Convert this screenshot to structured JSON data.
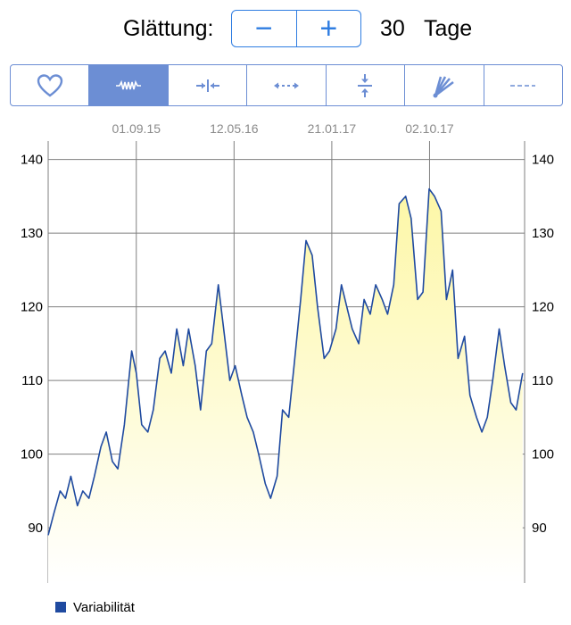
{
  "smoothing": {
    "label": "Glättung:",
    "minus": "−",
    "plus": "+",
    "value": "30",
    "unit": "Tage"
  },
  "toolbar": {
    "tabs": [
      {
        "icon": "heart-icon",
        "active": false
      },
      {
        "icon": "waveform-icon",
        "active": true
      },
      {
        "icon": "compress-horizontal-icon",
        "active": false
      },
      {
        "icon": "expand-horizontal-icon",
        "active": false
      },
      {
        "icon": "compress-vertical-icon",
        "active": false
      },
      {
        "icon": "fan-icon",
        "active": false
      },
      {
        "icon": "dashed-line-icon",
        "active": false
      }
    ]
  },
  "colors": {
    "accent": "#2f7de1",
    "segment": "#6c8ed4",
    "line": "#1f4aa0",
    "fill_top": "#fdf7a6",
    "fill_bottom": "#ffffff",
    "grid": "#7f7f7f",
    "legend": "#1f4aa0"
  },
  "chart_data": {
    "type": "area",
    "title": "",
    "xlabel": "",
    "ylabel": "",
    "x_tick_labels": [
      "01.09.15",
      "12.05.16",
      "21.01.17",
      "02.10.17"
    ],
    "x_range": [
      "2015-01-15",
      "2018-06-06"
    ],
    "y_ticks": [
      90,
      100,
      110,
      120,
      130,
      140
    ],
    "ylim": [
      82.5,
      142.5
    ],
    "grid": true,
    "legend_position": "bottom-left",
    "series": [
      {
        "name": "Variabilität",
        "x": [
          "2015-01-15",
          "2015-01-30",
          "2015-02-15",
          "2015-03-01",
          "2015-03-15",
          "2015-04-01",
          "2015-04-15",
          "2015-05-01",
          "2015-05-15",
          "2015-06-01",
          "2015-06-15",
          "2015-07-01",
          "2015-07-15",
          "2015-08-01",
          "2015-08-20",
          "2015-09-01",
          "2015-09-15",
          "2015-10-01",
          "2015-10-15",
          "2015-11-01",
          "2015-11-15",
          "2015-12-01",
          "2015-12-15",
          "2016-01-01",
          "2016-01-15",
          "2016-02-01",
          "2016-02-15",
          "2016-03-01",
          "2016-03-15",
          "2016-04-01",
          "2016-04-15",
          "2016-05-01",
          "2016-05-15",
          "2016-06-01",
          "2016-06-15",
          "2016-07-01",
          "2016-07-15",
          "2016-08-01",
          "2016-08-15",
          "2016-09-01",
          "2016-09-15",
          "2016-10-01",
          "2016-10-15",
          "2016-11-01",
          "2016-11-15",
          "2016-12-01",
          "2016-12-15",
          "2017-01-01",
          "2017-01-15",
          "2017-02-01",
          "2017-02-15",
          "2017-03-01",
          "2017-03-15",
          "2017-04-01",
          "2017-04-15",
          "2017-05-01",
          "2017-05-15",
          "2017-06-01",
          "2017-06-15",
          "2017-07-01",
          "2017-07-15",
          "2017-08-01",
          "2017-08-15",
          "2017-09-01",
          "2017-09-15",
          "2017-10-01",
          "2017-10-15",
          "2017-11-01",
          "2017-11-15",
          "2017-12-01",
          "2017-12-15",
          "2018-01-01",
          "2018-01-15",
          "2018-02-01",
          "2018-02-15",
          "2018-03-01",
          "2018-03-15",
          "2018-04-01",
          "2018-04-15",
          "2018-05-01",
          "2018-05-15",
          "2018-06-01"
        ],
        "values": [
          89,
          92,
          95,
          94,
          97,
          93,
          95,
          94,
          97,
          101,
          103,
          99,
          98,
          104,
          114,
          111,
          104,
          103,
          106,
          113,
          114,
          111,
          117,
          112,
          117,
          112,
          106,
          114,
          115,
          123,
          117,
          110,
          112,
          108,
          105,
          103,
          100,
          96,
          94,
          97,
          106,
          105,
          112,
          121,
          129,
          127,
          120,
          113,
          114,
          117,
          123,
          120,
          117,
          115,
          121,
          119,
          123,
          121,
          119,
          123,
          134,
          135,
          132,
          121,
          122,
          136,
          135,
          133,
          121,
          125,
          113,
          116,
          108,
          105,
          103,
          105,
          110,
          117,
          112,
          107,
          106,
          111
        ]
      }
    ]
  }
}
